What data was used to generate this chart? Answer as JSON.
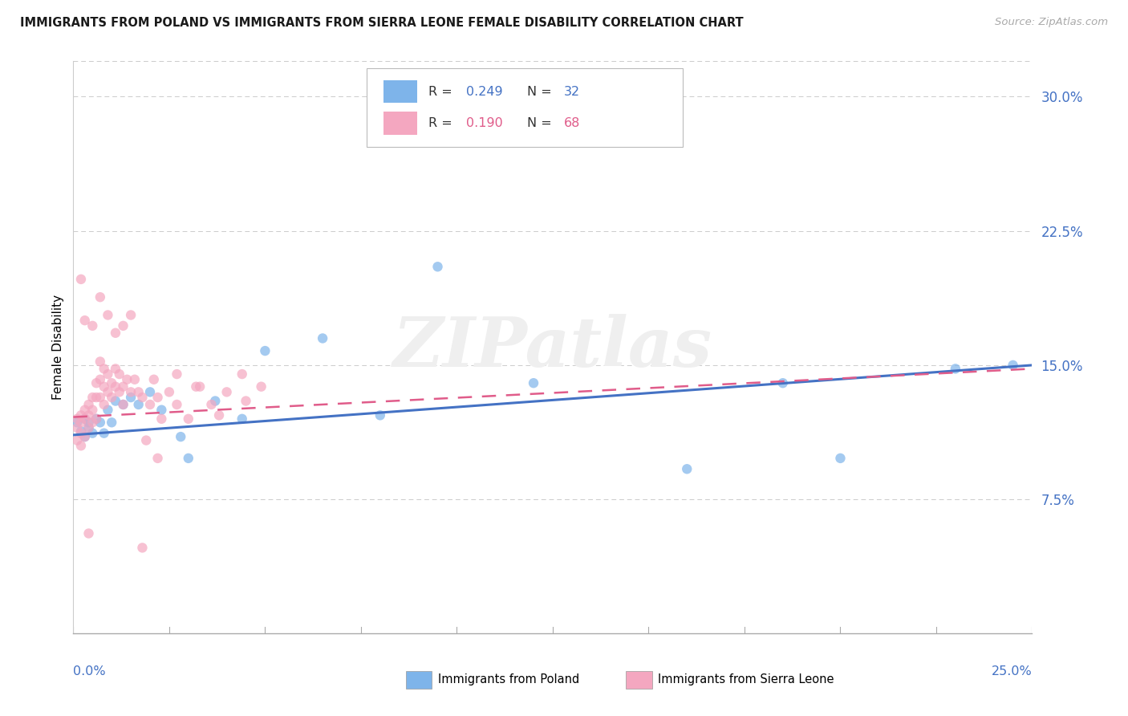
{
  "title": "IMMIGRANTS FROM POLAND VS IMMIGRANTS FROM SIERRA LEONE FEMALE DISABILITY CORRELATION CHART",
  "source": "Source: ZipAtlas.com",
  "ylabel": "Female Disability",
  "yaxis_ticks": [
    0.0,
    0.075,
    0.15,
    0.225,
    0.3
  ],
  "yaxis_labels": [
    "",
    "7.5%",
    "15.0%",
    "22.5%",
    "30.0%"
  ],
  "xlim": [
    0.0,
    0.25
  ],
  "ylim": [
    0.0,
    0.32
  ],
  "legend_r_poland": "0.249",
  "legend_n_poland": "32",
  "legend_r_sierra": "0.190",
  "legend_n_sierra": "68",
  "watermark": "ZIPatlas",
  "blue_color": "#7EB4EA",
  "blue_dark": "#4472C4",
  "pink_color": "#F4A7C0",
  "pink_dark": "#E05C8A",
  "scatter_size": 80,
  "scatter_alpha": 0.7,
  "poland_x": [
    0.001,
    0.002,
    0.003,
    0.003,
    0.004,
    0.004,
    0.005,
    0.006,
    0.007,
    0.008,
    0.009,
    0.01,
    0.011,
    0.013,
    0.015,
    0.017,
    0.02,
    0.023,
    0.028,
    0.03,
    0.037,
    0.044,
    0.05,
    0.065,
    0.08,
    0.095,
    0.12,
    0.16,
    0.185,
    0.2,
    0.23,
    0.245
  ],
  "poland_y": [
    0.118,
    0.113,
    0.11,
    0.12,
    0.118,
    0.115,
    0.112,
    0.12,
    0.118,
    0.112,
    0.125,
    0.118,
    0.13,
    0.128,
    0.132,
    0.128,
    0.135,
    0.125,
    0.11,
    0.098,
    0.13,
    0.12,
    0.158,
    0.165,
    0.122,
    0.205,
    0.14,
    0.092,
    0.14,
    0.098,
    0.148,
    0.15
  ],
  "sierra_x": [
    0.001,
    0.001,
    0.001,
    0.002,
    0.002,
    0.002,
    0.002,
    0.003,
    0.003,
    0.003,
    0.004,
    0.004,
    0.004,
    0.005,
    0.005,
    0.005,
    0.006,
    0.006,
    0.006,
    0.007,
    0.007,
    0.007,
    0.008,
    0.008,
    0.008,
    0.009,
    0.009,
    0.01,
    0.01,
    0.011,
    0.011,
    0.012,
    0.012,
    0.013,
    0.013,
    0.014,
    0.015,
    0.016,
    0.017,
    0.018,
    0.019,
    0.02,
    0.021,
    0.022,
    0.023,
    0.025,
    0.027,
    0.03,
    0.033,
    0.036,
    0.04,
    0.044,
    0.049,
    0.003,
    0.005,
    0.007,
    0.009,
    0.011,
    0.013,
    0.015,
    0.018,
    0.022,
    0.027,
    0.032,
    0.038,
    0.045,
    0.002,
    0.004
  ],
  "sierra_y": [
    0.12,
    0.115,
    0.108,
    0.122,
    0.118,
    0.112,
    0.105,
    0.125,
    0.12,
    0.11,
    0.128,
    0.122,
    0.115,
    0.132,
    0.125,
    0.118,
    0.14,
    0.132,
    0.12,
    0.152,
    0.142,
    0.132,
    0.148,
    0.138,
    0.128,
    0.145,
    0.135,
    0.14,
    0.132,
    0.148,
    0.138,
    0.145,
    0.135,
    0.138,
    0.128,
    0.142,
    0.135,
    0.142,
    0.135,
    0.132,
    0.108,
    0.128,
    0.142,
    0.132,
    0.12,
    0.135,
    0.145,
    0.12,
    0.138,
    0.128,
    0.135,
    0.145,
    0.138,
    0.175,
    0.172,
    0.188,
    0.178,
    0.168,
    0.172,
    0.178,
    0.048,
    0.098,
    0.128,
    0.138,
    0.122,
    0.13,
    0.198,
    0.056
  ],
  "trend_poland_x0": 0.0,
  "trend_poland_y0": 0.111,
  "trend_poland_x1": 0.25,
  "trend_poland_y1": 0.15,
  "trend_sierra_x0": 0.0,
  "trend_sierra_y0": 0.121,
  "trend_sierra_x1": 0.25,
  "trend_sierra_y1": 0.148
}
